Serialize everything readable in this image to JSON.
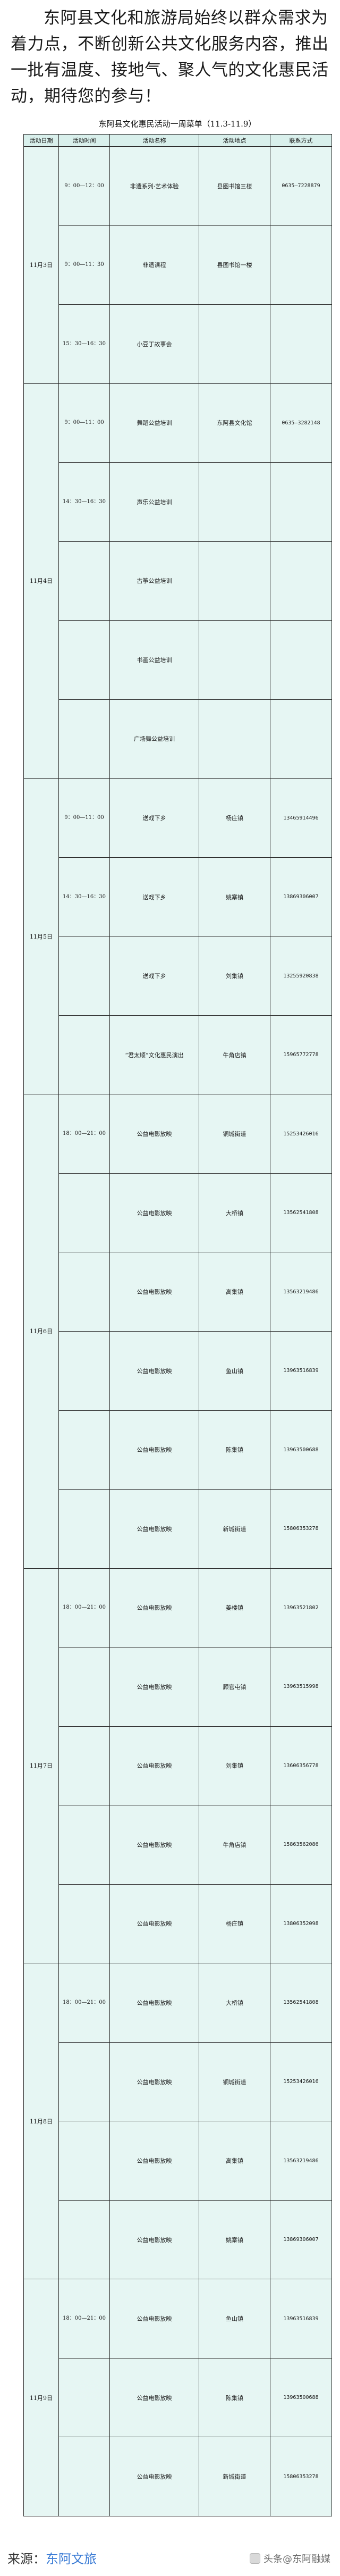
{
  "intro": {
    "text": "东阿县文化和旅游局始终以群众需求为着力点，不断创新公共文化服务内容，推出一批有温度、接地气、聚人气的文化惠民活动，期待您的参与！"
  },
  "document": {
    "title": "东阿县文化惠民活动一周菜单（11.3-11.9）",
    "headers": [
      "活动日期",
      "活动时间",
      "活动名称",
      "活动地点",
      "联系方式"
    ]
  },
  "sections": [
    {
      "date": "11月3日",
      "rows": [
        {
          "time": "9：00—12：00",
          "name": "非遗系列·艺术体验",
          "location": "县图书馆三楼",
          "phone": "0635—7228879"
        },
        {
          "time": "9：00—11：30",
          "name": "非遗课程",
          "location": "县图书馆一楼",
          "phone": ""
        },
        {
          "time": "15：30—16：30",
          "name": "小豆丁故事会",
          "location": "",
          "phone": ""
        }
      ]
    },
    {
      "date": "11月4日",
      "rows": [
        {
          "time": "9：00—11：00",
          "name": "舞蹈公益培训",
          "location": "东阿县文化馆",
          "phone": "0635—3282148"
        },
        {
          "time": "14：30—16：30",
          "name": "声乐公益培训",
          "location": "",
          "phone": ""
        },
        {
          "time": "",
          "name": "古筝公益培训",
          "location": "",
          "phone": ""
        },
        {
          "time": "",
          "name": "书画公益培训",
          "location": "",
          "phone": ""
        },
        {
          "time": "",
          "name": "广场舞公益培训",
          "location": "",
          "phone": ""
        }
      ]
    },
    {
      "date": "11月5日",
      "rows": [
        {
          "time": "9：00—11：00",
          "name": "送戏下乡",
          "location": "杨庄镇",
          "phone": "13465914496"
        },
        {
          "time": "14：30—16：30",
          "name": "送戏下乡",
          "location": "姚寨镇",
          "phone": "13869306007"
        },
        {
          "time": "",
          "name": "送戏下乡",
          "location": "刘集镇",
          "phone": "13255920838"
        },
        {
          "time": "",
          "name": "“君太顺”文化惠民演出",
          "location": "牛角店镇",
          "phone": "15965772778"
        }
      ]
    },
    {
      "date": "11月6日",
      "rows": [
        {
          "time": "18：00—21：00",
          "name": "公益电影放映",
          "location": "铜城街道",
          "phone": "15253426016"
        },
        {
          "time": "",
          "name": "公益电影放映",
          "location": "大桥镇",
          "phone": "13562541808"
        },
        {
          "time": "",
          "name": "公益电影放映",
          "location": "高集镇",
          "phone": "13563219486"
        },
        {
          "time": "",
          "name": "公益电影放映",
          "location": "鱼山镇",
          "phone": "13963516839"
        },
        {
          "time": "",
          "name": "公益电影放映",
          "location": "陈集镇",
          "phone": "13963500688"
        },
        {
          "time": "",
          "name": "公益电影放映",
          "location": "新城街道",
          "phone": "15806353278"
        }
      ]
    },
    {
      "date": "11月7日",
      "rows": [
        {
          "time": "18：00—21：00",
          "name": "公益电影放映",
          "location": "姜楼镇",
          "phone": "13963521802"
        },
        {
          "time": "",
          "name": "公益电影放映",
          "location": "顾官屯镇",
          "phone": "13963515998"
        },
        {
          "time": "",
          "name": "公益电影放映",
          "location": "刘集镇",
          "phone": "13606356778"
        },
        {
          "time": "",
          "name": "公益电影放映",
          "location": "牛角店镇",
          "phone": "15863562086"
        },
        {
          "time": "",
          "name": "公益电影放映",
          "location": "杨庄镇",
          "phone": "13806352098"
        }
      ]
    },
    {
      "date": "11月8日",
      "rows": [
        {
          "time": "18：00—21：00",
          "name": "公益电影放映",
          "location": "大桥镇",
          "phone": "13562541808"
        },
        {
          "time": "",
          "name": "公益电影放映",
          "location": "铜城街道",
          "phone": "15253426016"
        },
        {
          "time": "",
          "name": "公益电影放映",
          "location": "高集镇",
          "phone": "13563219486"
        },
        {
          "time": "",
          "name": "公益电影放映",
          "location": "姚寨镇",
          "phone": "13869306007"
        }
      ]
    },
    {
      "date": "11月9日",
      "rows": [
        {
          "time": "18：00—21：00",
          "name": "公益电影放映",
          "location": "鱼山镇",
          "phone": "13963516839"
        },
        {
          "time": "",
          "name": "公益电影放映",
          "location": "陈集镇",
          "phone": "13963500688"
        },
        {
          "time": "",
          "name": "公益电影放映",
          "location": "新城街道",
          "phone": "15806353278"
        }
      ]
    }
  ],
  "footer": {
    "source_label": "来源：",
    "source_value": "东阿文旅",
    "watermark": "头条@东阿融媒"
  },
  "colors": {
    "table_fill": "#e6f6f3",
    "header_fill": "#d9f0ec",
    "source_link": "#3a7bd5"
  }
}
